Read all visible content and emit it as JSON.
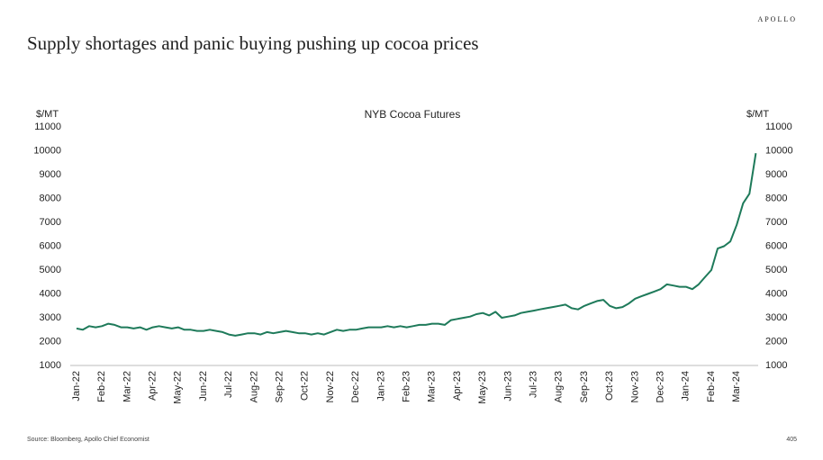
{
  "chart_data": {
    "type": "line",
    "brand": "APOLLO",
    "title": "Supply shortages and panic buying pushing up cocoa prices",
    "subtitle": "NYB Cocoa Futures",
    "ylabel": "$/MT",
    "y2label": "$/MT",
    "source": "Source: Bloomberg, Apollo Chief Economist",
    "page_number": "405",
    "categories": [
      "Jan-22",
      null,
      null,
      null,
      "Feb-22",
      null,
      null,
      null,
      "Mar-22",
      null,
      null,
      null,
      "Apr-22",
      null,
      null,
      null,
      "May-22",
      null,
      null,
      null,
      "Jun-22",
      null,
      null,
      null,
      "Jul-22",
      null,
      null,
      null,
      "Aug-22",
      null,
      null,
      null,
      "Sep-22",
      null,
      null,
      null,
      "Oct-22",
      null,
      null,
      null,
      "Nov-22",
      null,
      null,
      null,
      "Dec-22",
      null,
      null,
      null,
      "Jan-23",
      null,
      null,
      null,
      "Feb-23",
      null,
      null,
      null,
      "Mar-23",
      null,
      null,
      null,
      "Apr-23",
      null,
      null,
      null,
      "May-23",
      null,
      null,
      null,
      "Jun-23",
      null,
      null,
      null,
      "Jul-23",
      null,
      null,
      null,
      "Aug-23",
      null,
      null,
      null,
      "Sep-23",
      null,
      null,
      null,
      "Oct-23",
      null,
      null,
      null,
      "Nov-23",
      null,
      null,
      null,
      "Dec-23",
      null,
      null,
      null,
      "Jan-24",
      null,
      null,
      null,
      "Feb-24",
      null,
      null,
      null,
      "Mar-24",
      null,
      null,
      null
    ],
    "series": [
      {
        "name": "NYB Cocoa Futures",
        "color": "#1e7a5a",
        "values": [
          2550,
          2500,
          2650,
          2600,
          2650,
          2750,
          2700,
          2600,
          2600,
          2550,
          2600,
          2500,
          2600,
          2650,
          2600,
          2550,
          2600,
          2500,
          2500,
          2450,
          2450,
          2500,
          2450,
          2400,
          2300,
          2250,
          2300,
          2350,
          2350,
          2300,
          2400,
          2350,
          2400,
          2450,
          2400,
          2350,
          2350,
          2300,
          2350,
          2300,
          2400,
          2500,
          2450,
          2500,
          2500,
          2550,
          2600,
          2600,
          2600,
          2650,
          2600,
          2650,
          2600,
          2650,
          2700,
          2700,
          2750,
          2750,
          2700,
          2900,
          2950,
          3000,
          3050,
          3150,
          3200,
          3100,
          3250,
          3000,
          3050,
          3100,
          3200,
          3250,
          3300,
          3350,
          3400,
          3450,
          3500,
          3550,
          3400,
          3350,
          3500,
          3600,
          3700,
          3750,
          3500,
          3400,
          3450,
          3600,
          3800,
          3900,
          4000,
          4100,
          4200,
          4400,
          4350,
          4300,
          4300,
          4200,
          4400,
          4700,
          5000,
          5900,
          6000,
          6200,
          6900,
          7800,
          8200,
          9900
        ]
      }
    ],
    "ylim": [
      1000,
      11000
    ],
    "yticks": [
      1000,
      2000,
      3000,
      4000,
      5000,
      6000,
      7000,
      8000,
      9000,
      10000,
      11000
    ],
    "y2lim": [
      1000,
      11000
    ],
    "y2ticks": [
      1000,
      2000,
      3000,
      4000,
      5000,
      6000,
      7000,
      8000,
      9000,
      10000,
      11000
    ],
    "grid": false
  }
}
